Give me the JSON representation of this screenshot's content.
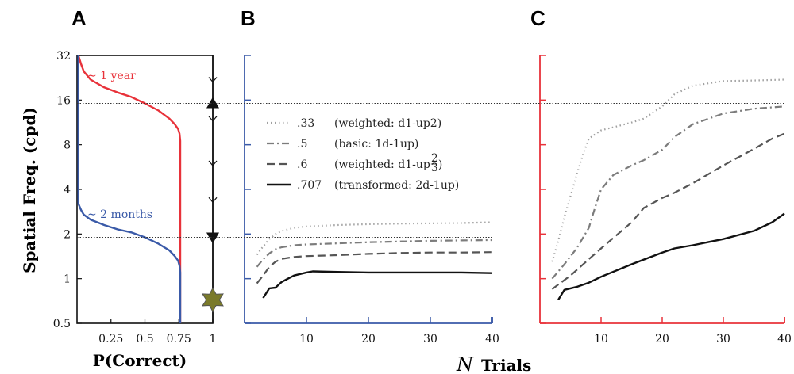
{
  "colors": {
    "red": "#e8323a",
    "blue": "#3a5aa8",
    "black": "#111111",
    "star": "#7a7a2a"
  },
  "panel_letters": [
    "A",
    "B",
    "C"
  ],
  "labels": {
    "ylabel": "Spatial Freq. (cpd)",
    "xlabel_a": "P(Correct)",
    "xlabel_n": "N",
    "xlabel_trials": "Trials",
    "annot_year": "∼ 1 year",
    "annot_months": "∼ 2 months"
  },
  "chart_data": [
    {
      "panel": "A",
      "type": "line",
      "xlabel": "P(Correct)",
      "ylabel": "Spatial Freq. (cpd)",
      "yscale": "log2",
      "ylim": [
        0.5,
        32
      ],
      "xlim": [
        0.0,
        1.0
      ],
      "y_ticks": [
        0.5,
        1,
        2,
        4,
        8,
        16,
        32
      ],
      "y_tick_labels": [
        "0.5",
        "1",
        "2",
        "4",
        "8",
        "16",
        "32"
      ],
      "x_ticks": [
        0.25,
        0.5,
        0.75,
        1
      ],
      "x_tick_labels": [
        "0.25",
        "0.5",
        "0.75",
        "1"
      ],
      "reference_lines_y": [
        15.2,
        1.9
      ],
      "reference_line_x": 0.5,
      "annotations": [
        "∼ 1 year",
        "∼ 2 months"
      ],
      "series": [
        {
          "color": "#e8323a",
          "x": [
            0.01,
            0.03,
            0.05,
            0.1,
            0.2,
            0.3,
            0.4,
            0.5,
            0.6,
            0.68,
            0.72,
            0.745,
            0.755,
            0.76,
            0.76
          ],
          "y": [
            32,
            28,
            25,
            22,
            19.5,
            18.0,
            16.8,
            15.2,
            13.6,
            12.0,
            11.0,
            10.2,
            9.5,
            8.5,
            0.5
          ]
        },
        {
          "color": "#3a5aa8",
          "x": [
            0.01,
            0.01,
            0.03,
            0.05,
            0.1,
            0.2,
            0.3,
            0.4,
            0.5,
            0.6,
            0.68,
            0.72,
            0.745,
            0.755,
            0.76,
            0.76
          ],
          "y": [
            32,
            3.2,
            2.9,
            2.7,
            2.5,
            2.3,
            2.15,
            2.05,
            1.9,
            1.72,
            1.55,
            1.42,
            1.32,
            1.22,
            1.1,
            0.5
          ]
        }
      ],
      "markers": [
        {
          "shape": "triangle-up",
          "x": 1,
          "y": 15.2
        },
        {
          "shape": "triangle-down",
          "x": 1,
          "y": 1.9
        },
        {
          "shape": "star",
          "x": 1,
          "y": 0.72
        }
      ]
    },
    {
      "panel": "B",
      "type": "line",
      "xlabel": "N Trials",
      "xlim": [
        0,
        40
      ],
      "x_ticks": [
        10,
        20,
        30,
        40
      ],
      "x_tick_labels": [
        "10",
        "20",
        "30",
        "40"
      ],
      "yscale": "log2",
      "ylim": [
        0.5,
        32
      ],
      "reference_lines_y": [
        15.2,
        1.9
      ],
      "legend": [
        {
          "value": ".33",
          "desc": "(weighted: d1-up2)",
          "style": "dotted",
          "color": "#a0a0a0"
        },
        {
          "value": ".5",
          "desc": "(basic: 1d-1up)",
          "style": "dashdot",
          "color": "#7c7c7c"
        },
        {
          "value": ".6",
          "desc": "(weighted: d1-up",
          "frac_num": "2",
          "frac_den": "3",
          "desc_end": ")",
          "style": "dashed",
          "color": "#555555"
        },
        {
          "value": ".707",
          "desc": "(transformed: 2d-1up)",
          "style": "solid",
          "color": "#111111"
        }
      ],
      "series": [
        {
          "name": ".33",
          "x": [
            2,
            3,
            4,
            5,
            6,
            8,
            10,
            15,
            20,
            25,
            30,
            35,
            40
          ],
          "y": [
            1.45,
            1.65,
            1.85,
            2.0,
            2.1,
            2.2,
            2.25,
            2.3,
            2.33,
            2.35,
            2.36,
            2.37,
            2.4
          ]
        },
        {
          "name": ".5",
          "x": [
            2,
            3,
            4,
            5,
            6,
            8,
            10,
            15,
            20,
            25,
            30,
            35,
            40
          ],
          "y": [
            1.2,
            1.35,
            1.48,
            1.58,
            1.63,
            1.68,
            1.7,
            1.73,
            1.76,
            1.78,
            1.8,
            1.81,
            1.82
          ]
        },
        {
          "name": ".6",
          "x": [
            2,
            3,
            4,
            5,
            6,
            8,
            10,
            15,
            20,
            25,
            30,
            35,
            40
          ],
          "y": [
            0.93,
            1.05,
            1.2,
            1.3,
            1.36,
            1.4,
            1.42,
            1.44,
            1.47,
            1.49,
            1.5,
            1.5,
            1.51
          ]
        },
        {
          "name": ".707",
          "x": [
            3,
            4,
            5,
            6,
            7,
            8,
            10,
            11,
            15,
            20,
            25,
            30,
            35,
            40
          ],
          "y": [
            0.74,
            0.86,
            0.87,
            0.95,
            1.0,
            1.05,
            1.1,
            1.12,
            1.11,
            1.1,
            1.1,
            1.1,
            1.1,
            1.09
          ]
        }
      ]
    },
    {
      "panel": "C",
      "type": "line",
      "xlim": [
        0,
        40
      ],
      "x_ticks": [
        10,
        20,
        30,
        40
      ],
      "x_tick_labels": [
        "10",
        "20",
        "30",
        "40"
      ],
      "yscale": "log2",
      "ylim": [
        0.5,
        32
      ],
      "reference_lines_y": [
        15.2
      ],
      "series": [
        {
          "name": ".33",
          "x": [
            2,
            3,
            4,
            5,
            6,
            7,
            8,
            10,
            12,
            15,
            17,
            20,
            22,
            25,
            30,
            35,
            40
          ],
          "y": [
            1.3,
            1.8,
            2.6,
            3.6,
            5.0,
            6.8,
            8.8,
            10.0,
            10.5,
            11.3,
            12.0,
            14.5,
            17.5,
            20.0,
            21.5,
            21.7,
            22.0
          ]
        },
        {
          "name": ".5",
          "x": [
            2,
            4,
            6,
            8,
            9,
            10,
            12,
            15,
            17,
            20,
            22,
            25,
            30,
            35,
            40
          ],
          "y": [
            1.0,
            1.25,
            1.6,
            2.2,
            3.0,
            4.0,
            5.0,
            5.8,
            6.3,
            7.4,
            9.0,
            11.0,
            13.0,
            14.0,
            14.5
          ]
        },
        {
          "name": ".6",
          "x": [
            2,
            5,
            10,
            15,
            17,
            20,
            22,
            25,
            30,
            35,
            38,
            40
          ],
          "y": [
            0.85,
            1.05,
            1.6,
            2.4,
            3.0,
            3.5,
            3.8,
            4.4,
            5.8,
            7.5,
            8.8,
            9.5
          ]
        },
        {
          "name": ".707",
          "x": [
            3,
            4,
            5,
            6,
            8,
            10,
            15,
            20,
            22,
            25,
            30,
            35,
            38,
            40
          ],
          "y": [
            0.72,
            0.84,
            0.86,
            0.88,
            0.94,
            1.03,
            1.25,
            1.5,
            1.6,
            1.68,
            1.85,
            2.1,
            2.4,
            2.75
          ]
        }
      ]
    }
  ]
}
